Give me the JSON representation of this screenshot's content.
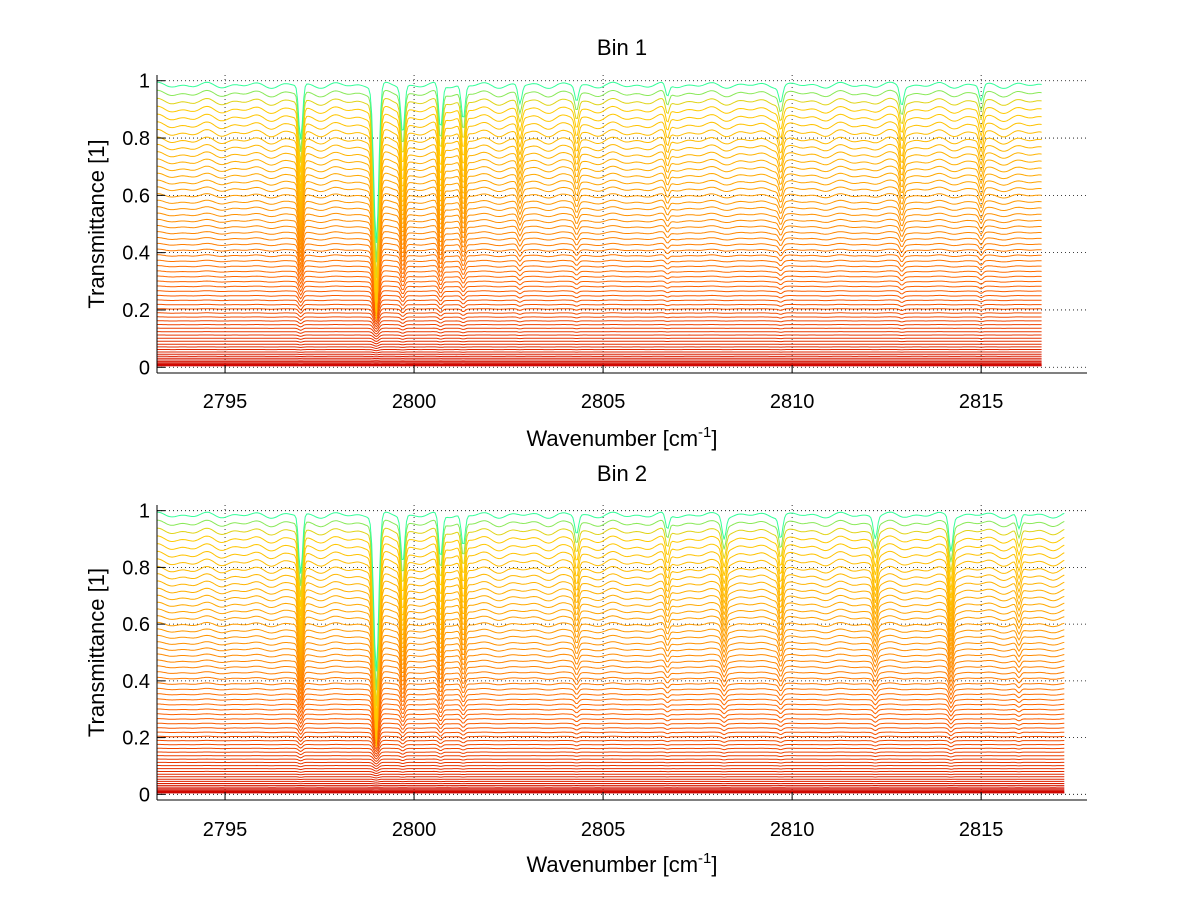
{
  "chart_data": [
    {
      "type": "line",
      "title": "Bin 1",
      "xlabel": "Wavenumber [cm",
      "xlabel_sup": "-1",
      "xlabel_close": "]",
      "ylabel": "Transmittance [1]",
      "xlim": [
        2793.2,
        2817.8
      ],
      "ylim": [
        -0.02,
        1.02
      ],
      "xticks": [
        2795,
        2800,
        2805,
        2810,
        2815
      ],
      "xtick_labels": [
        "2795",
        "2800",
        "2805",
        "2810",
        "2815"
      ],
      "yticks": [
        0,
        0.2,
        0.4,
        0.6,
        0.8,
        1
      ],
      "ytick_labels": [
        "0",
        "0.2",
        "0.4",
        "0.6",
        "0.8",
        "1"
      ],
      "grid": true,
      "colormap": "autumn",
      "colors": {
        "low": "#cc0000",
        "mid": "#ff6600",
        "high": "#ffcc00",
        "top": "#33ff99"
      },
      "curve_count": 60,
      "x_end": 2816.6,
      "absorption_lines": [
        {
          "x": 2799.0,
          "strength": 1.0
        },
        {
          "x": 2797.0,
          "strength": 0.35
        },
        {
          "x": 2799.7,
          "strength": 0.3
        },
        {
          "x": 2800.7,
          "strength": 0.28
        },
        {
          "x": 2801.3,
          "strength": 0.22
        },
        {
          "x": 2802.8,
          "strength": 0.12
        },
        {
          "x": 2804.3,
          "strength": 0.1
        },
        {
          "x": 2806.7,
          "strength": 0.08
        },
        {
          "x": 2809.7,
          "strength": 0.1
        },
        {
          "x": 2812.9,
          "strength": 0.12
        },
        {
          "x": 2815.0,
          "strength": 0.1
        }
      ]
    },
    {
      "type": "line",
      "title": "Bin 2",
      "xlabel": "Wavenumber [cm",
      "xlabel_sup": "-1",
      "xlabel_close": "]",
      "ylabel": "Transmittance [1]",
      "xlim": [
        2793.2,
        2817.8
      ],
      "ylim": [
        -0.02,
        1.02
      ],
      "xticks": [
        2795,
        2800,
        2805,
        2810,
        2815
      ],
      "xtick_labels": [
        "2795",
        "2800",
        "2805",
        "2810",
        "2815"
      ],
      "yticks": [
        0,
        0.2,
        0.4,
        0.6,
        0.8,
        1
      ],
      "ytick_labels": [
        "0",
        "0.2",
        "0.4",
        "0.6",
        "0.8",
        "1"
      ],
      "grid": true,
      "colormap": "autumn",
      "colors": {
        "low": "#cc0000",
        "mid": "#ff6600",
        "high": "#ffcc00",
        "top": "#33ff99"
      },
      "curve_count": 60,
      "x_end": 2817.2,
      "absorption_lines": [
        {
          "x": 2799.0,
          "strength": 1.0
        },
        {
          "x": 2797.0,
          "strength": 0.38
        },
        {
          "x": 2799.7,
          "strength": 0.3
        },
        {
          "x": 2800.7,
          "strength": 0.28
        },
        {
          "x": 2801.3,
          "strength": 0.2
        },
        {
          "x": 2804.3,
          "strength": 0.12
        },
        {
          "x": 2806.7,
          "strength": 0.1
        },
        {
          "x": 2808.2,
          "strength": 0.14
        },
        {
          "x": 2809.7,
          "strength": 0.14
        },
        {
          "x": 2812.2,
          "strength": 0.14
        },
        {
          "x": 2814.2,
          "strength": 0.22
        },
        {
          "x": 2816.0,
          "strength": 0.1
        }
      ]
    }
  ]
}
